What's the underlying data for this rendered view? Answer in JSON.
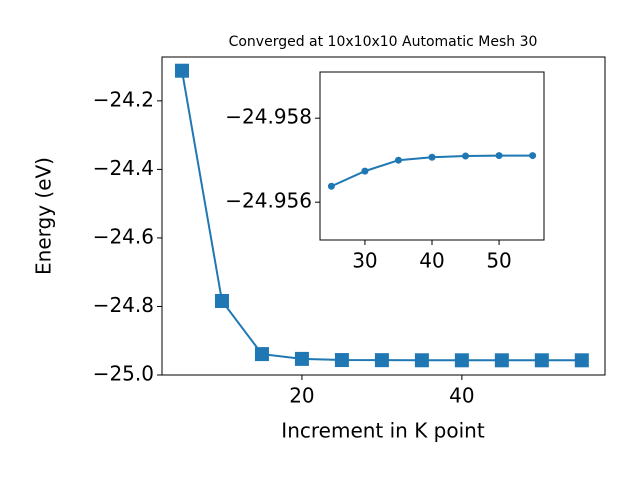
{
  "chart_data": [
    {
      "type": "line",
      "title": "Converged at 10x10x10 Automatic Mesh 30",
      "x_label": "Increment in K point",
      "y_label": "Energy (eV)",
      "x": [
        5,
        10,
        15,
        20,
        25,
        30,
        35,
        40,
        45,
        50,
        55
      ],
      "series": [
        {
          "color": "#1f77b4",
          "marker": "square",
          "values": [
            -24.112,
            -24.784,
            -24.939,
            -24.953,
            -24.9564,
            -24.9567,
            -24.957,
            -24.9571,
            -24.9571,
            -24.9571,
            -24.9571
          ]
        }
      ],
      "xlim": [
        2.5,
        57.9
      ],
      "xticks": [
        20,
        40
      ],
      "ylim": [
        -25.0,
        -24.072
      ],
      "yticks": [
        {
          "value": -25.0,
          "label": "−25.0"
        },
        {
          "value": -24.8,
          "label": "−24.8"
        },
        {
          "value": -24.6,
          "label": "−24.6"
        },
        {
          "value": -24.4,
          "label": "−24.4"
        },
        {
          "value": -24.2,
          "label": "−24.2"
        }
      ]
    },
    {
      "type": "line",
      "x": [
        25,
        30,
        35,
        40,
        45,
        50,
        55
      ],
      "series": [
        {
          "color": "#1f77b4",
          "marker": "circle",
          "values": [
            -24.95638,
            -24.95674,
            -24.957,
            -24.95707,
            -24.9571,
            -24.95711,
            -24.95711
          ]
        }
      ],
      "xlim": [
        23.3,
        56.7
      ],
      "xticks": [
        30,
        40,
        50
      ],
      "ylim": [
        -24.9551,
        -24.9591
      ],
      "yticks": [
        {
          "value": -24.956,
          "label": "−24.956"
        },
        {
          "value": -24.958,
          "label": "−24.958"
        }
      ]
    }
  ]
}
